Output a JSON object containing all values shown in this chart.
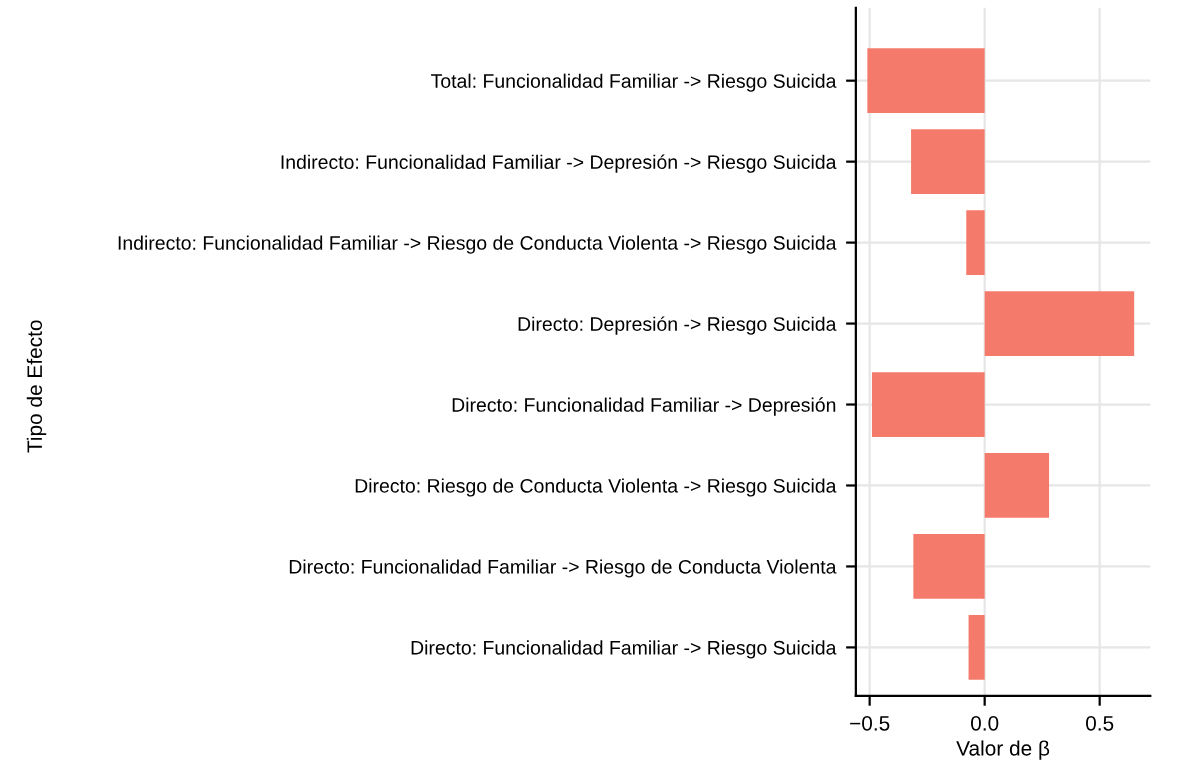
{
  "chart_data": {
    "type": "bar",
    "orientation": "horizontal",
    "xlabel": "Valor de β",
    "ylabel": "Tipo de Efecto",
    "categories": [
      "Total: Funcionalidad Familiar -> Riesgo Suicida",
      "Indirecto: Funcionalidad Familiar -> Depresión -> Riesgo Suicida",
      "Indirecto: Funcionalidad Familiar -> Riesgo de Conducta Violenta -> Riesgo Suicida",
      "Directo: Depresión -> Riesgo Suicida",
      "Directo: Funcionalidad Familiar -> Depresión",
      "Directo: Riesgo de Conducta Violenta -> Riesgo Suicida",
      "Directo: Funcionalidad Familiar -> Riesgo de Conducta Violenta",
      "Directo: Funcionalidad Familiar -> Riesgo Suicida"
    ],
    "values": [
      -0.51,
      -0.32,
      -0.08,
      0.65,
      -0.49,
      0.28,
      -0.31,
      -0.07
    ],
    "color": "#f47b6c",
    "xlim": [
      -0.56,
      0.72
    ],
    "xticks": [
      {
        "value": -0.5,
        "label": "−0.5"
      },
      {
        "value": 0.0,
        "label": "0.0"
      },
      0.5
    ],
    "grid": true
  }
}
